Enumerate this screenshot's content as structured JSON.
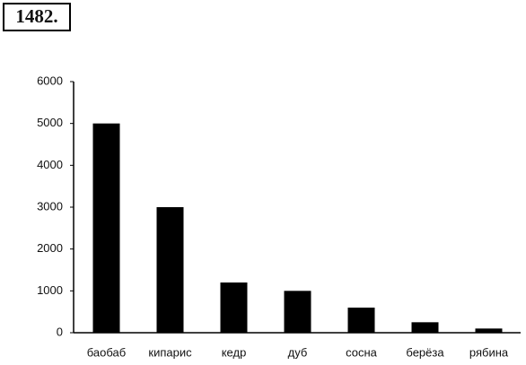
{
  "problem_number": "1482.",
  "chart_data": {
    "type": "bar",
    "categories": [
      "баобаб",
      "кипарис",
      "кедр",
      "дуб",
      "сосна",
      "берёза",
      "рябина"
    ],
    "values": [
      5000,
      3000,
      1200,
      1000,
      600,
      250,
      100
    ],
    "color": "#000000",
    "ylim": [
      0,
      6000
    ],
    "yticks": [
      0,
      1000,
      2000,
      3000,
      4000,
      5000,
      6000
    ],
    "grid": false
  }
}
